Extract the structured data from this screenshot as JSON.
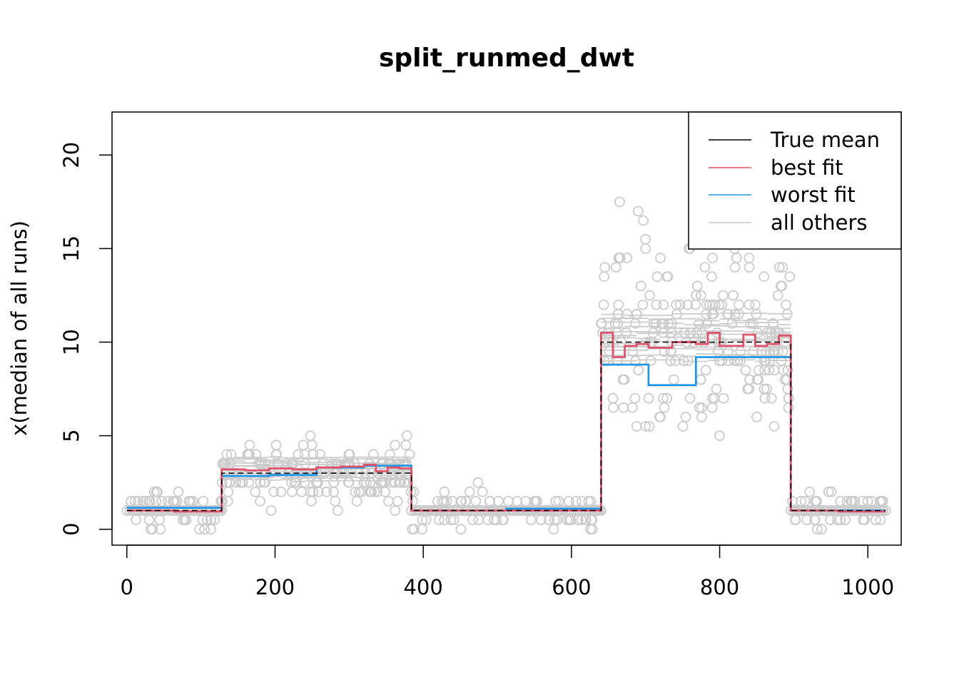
{
  "chart_data": {
    "type": "line",
    "title": "split_runmed_dwt",
    "xlabel": "",
    "ylabel": "x(median of all runs)",
    "xlim": [
      -20,
      1045
    ],
    "ylim": [
      -0.85,
      22.3
    ],
    "x_ticks": [
      0,
      200,
      400,
      600,
      800,
      1000
    ],
    "y_ticks": [
      0,
      5,
      10,
      15,
      20
    ],
    "legend_position": "top-right",
    "colors": {
      "true_mean": "#000000",
      "best_fit": "#DF536B",
      "worst_fit": "#2297E6",
      "others": "#CCCCCC",
      "points": "#CCCCCC"
    },
    "legend": [
      {
        "label": "True mean",
        "color": "#000000"
      },
      {
        "label": "best fit",
        "color": "#DF536B"
      },
      {
        "label": "worst fit",
        "color": "#2297E6"
      },
      {
        "label": "all others",
        "color": "#CCCCCC"
      }
    ],
    "series": [
      {
        "name": "True mean",
        "color": "#000000",
        "dashed": true,
        "x": [
          0,
          128,
          128,
          384,
          384,
          640,
          640,
          896,
          896,
          1024
        ],
        "y": [
          1,
          1,
          3,
          3,
          1,
          1,
          10,
          10,
          1,
          1
        ]
      },
      {
        "name": "best fit",
        "color": "#DF536B",
        "x": [
          0,
          64,
          64,
          128,
          128,
          160,
          160,
          192,
          192,
          224,
          224,
          256,
          256,
          288,
          288,
          320,
          320,
          336,
          336,
          352,
          352,
          368,
          368,
          384,
          384,
          640,
          640,
          656,
          656,
          672,
          672,
          688,
          688,
          704,
          704,
          736,
          736,
          768,
          768,
          784,
          784,
          800,
          800,
          832,
          832,
          848,
          848,
          864,
          864,
          880,
          880,
          896,
          896,
          960,
          960,
          1024
        ],
        "y": [
          1.0,
          1.0,
          0.95,
          0.95,
          3.2,
          3.2,
          3.15,
          3.15,
          3.25,
          3.25,
          3.2,
          3.2,
          3.3,
          3.3,
          3.35,
          3.35,
          3.45,
          3.45,
          3.1,
          3.1,
          3.3,
          3.3,
          3.25,
          3.25,
          1.0,
          1.0,
          10.5,
          10.5,
          9.2,
          9.2,
          9.8,
          9.8,
          9.9,
          9.9,
          9.7,
          9.7,
          10.0,
          10.0,
          9.9,
          9.9,
          10.5,
          10.5,
          9.8,
          9.8,
          10.4,
          10.4,
          9.8,
          9.8,
          9.9,
          9.9,
          10.35,
          10.35,
          1.0,
          1.0,
          0.95,
          0.95
        ]
      },
      {
        "name": "worst fit",
        "color": "#2297E6",
        "x": [
          0,
          128,
          128,
          192,
          192,
          256,
          256,
          320,
          320,
          384,
          384,
          512,
          512,
          640,
          640,
          704,
          704,
          768,
          768,
          896,
          896,
          1024
        ],
        "y": [
          1.15,
          1.15,
          2.85,
          2.85,
          2.9,
          2.9,
          3.3,
          3.3,
          3.4,
          3.4,
          1.0,
          1.0,
          1.1,
          1.1,
          8.8,
          8.8,
          7.7,
          7.7,
          9.2,
          9.2,
          1.0,
          1.0
        ]
      }
    ],
    "others": {
      "name": "all others",
      "color": "#CCCCCC",
      "segments": [
        {
          "x0": 0,
          "x1": 128,
          "y": [
            0.9,
            0.95,
            1.05,
            1.1,
            1.2
          ]
        },
        {
          "x0": 128,
          "x1": 384,
          "y": [
            2.6,
            2.8,
            2.9,
            3.0,
            3.1,
            3.2,
            3.3,
            3.4,
            3.5,
            3.6,
            3.7,
            3.8
          ]
        },
        {
          "x0": 384,
          "x1": 640,
          "y": [
            0.8,
            0.9,
            1.0,
            1.1,
            1.2
          ]
        },
        {
          "x0": 640,
          "x1": 896,
          "y": [
            9.0,
            9.3,
            9.6,
            9.8,
            10.0,
            10.2,
            10.4,
            10.6,
            10.8,
            11.0,
            11.2,
            11.5
          ]
        },
        {
          "x0": 896,
          "x1": 1024,
          "y": [
            0.85,
            0.95,
            1.05,
            1.15
          ]
        }
      ]
    },
    "points": {
      "color": "#CCCCCC",
      "segments": [
        {
          "x0": 0,
          "x1": 128,
          "mean": 1,
          "spread": 1.0,
          "n": 60
        },
        {
          "x0": 128,
          "x1": 384,
          "mean": 3,
          "spread": 1.6,
          "n": 170
        },
        {
          "x0": 384,
          "x1": 640,
          "mean": 1,
          "spread": 1.0,
          "n": 110
        },
        {
          "x0": 640,
          "x1": 896,
          "mean": 10,
          "spread": 4.5,
          "n": 200
        },
        {
          "x0": 896,
          "x1": 1024,
          "mean": 1,
          "spread": 0.8,
          "n": 60
        }
      ],
      "extra": [
        [
          665,
          17.5
        ],
        [
          690,
          17.0
        ],
        [
          697,
          16.5
        ],
        [
          700,
          15.0
        ],
        [
          730,
          13.5
        ],
        [
          760,
          15.0
        ],
        [
          820,
          15.0
        ],
        [
          850,
          15.5
        ],
        [
          720,
          14.5
        ],
        [
          780,
          14.0
        ],
        [
          840,
          14.0
        ],
        [
          885,
          14.0
        ],
        [
          675,
          14.5
        ],
        [
          660,
          14.0
        ],
        [
          645,
          14.0
        ],
        [
          688,
          5.5
        ],
        [
          700,
          5.5
        ],
        [
          705,
          5.5
        ],
        [
          720,
          6.0
        ],
        [
          790,
          6.5
        ],
        [
          760,
          7.0
        ],
        [
          870,
          7.0
        ],
        [
          893,
          6.5
        ],
        [
          893,
          7.0
        ]
      ]
    }
  }
}
